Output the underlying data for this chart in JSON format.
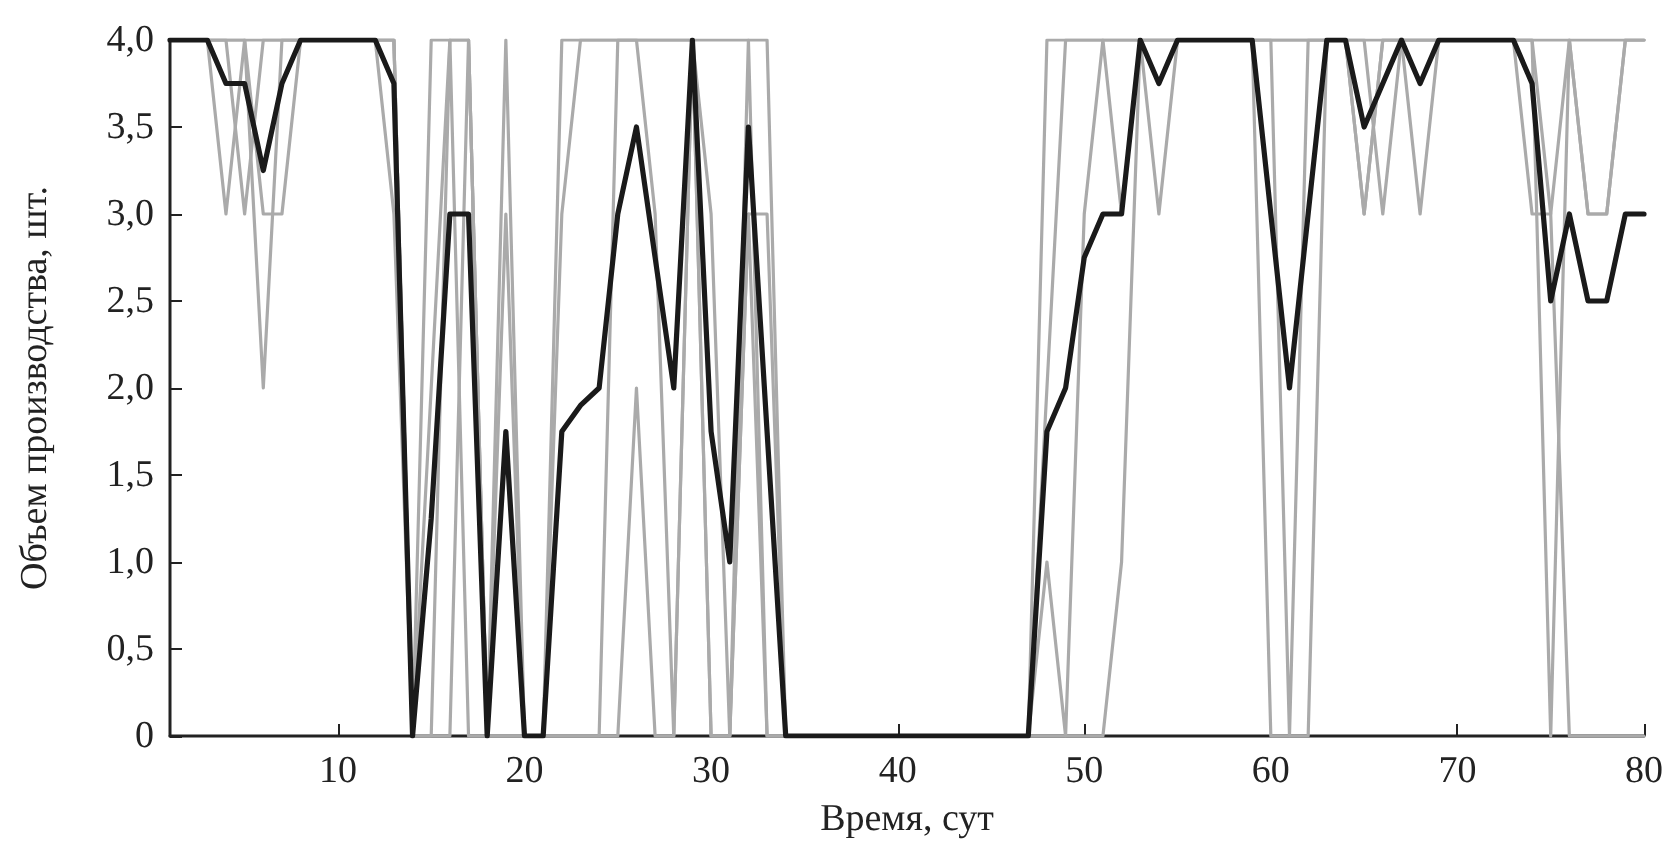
{
  "chart_data": {
    "type": "line",
    "xlabel": "Время, сут",
    "ylabel": "Объем производства, шт.",
    "x": [
      1,
      2,
      3,
      4,
      5,
      6,
      7,
      8,
      9,
      10,
      11,
      12,
      13,
      14,
      15,
      16,
      17,
      18,
      19,
      20,
      21,
      22,
      23,
      24,
      25,
      26,
      27,
      28,
      29,
      30,
      31,
      32,
      33,
      34,
      35,
      36,
      37,
      38,
      39,
      40,
      41,
      42,
      43,
      44,
      45,
      46,
      47,
      48,
      49,
      50,
      51,
      52,
      53,
      54,
      55,
      56,
      57,
      58,
      59,
      60,
      61,
      62,
      63,
      64,
      65,
      66,
      67,
      68,
      69,
      70,
      71,
      72,
      73,
      74,
      75,
      76,
      77,
      78,
      79,
      80
    ],
    "series": [
      {
        "color": "#aaaaaa",
        "values": [
          4,
          4,
          4,
          3,
          4,
          4,
          4,
          4,
          4,
          4,
          4,
          4,
          4,
          0,
          4,
          4,
          4,
          0,
          4,
          0,
          0,
          4,
          4,
          4,
          4,
          4,
          4,
          4,
          4,
          4,
          4,
          4,
          4,
          0,
          0,
          0,
          0,
          0,
          0,
          0,
          0,
          0,
          0,
          0,
          0,
          0,
          0,
          4,
          4,
          4,
          4,
          4,
          4,
          4,
          4,
          4,
          4,
          4,
          4,
          4,
          4,
          4,
          4,
          4,
          4,
          4,
          4,
          4,
          4,
          4,
          4,
          4,
          4,
          4,
          4,
          4,
          4,
          4,
          4,
          4
        ]
      },
      {
        "color": "#aaaaaa",
        "values": [
          4,
          4,
          4,
          4,
          3,
          4,
          4,
          4,
          4,
          4,
          4,
          4,
          4,
          0,
          2,
          4,
          4,
          0,
          3,
          0,
          0,
          3,
          4,
          4,
          4,
          4,
          4,
          4,
          4,
          3,
          0,
          4,
          0,
          0,
          0,
          0,
          0,
          0,
          0,
          0,
          0,
          0,
          0,
          0,
          0,
          0,
          0,
          2,
          4,
          4,
          4,
          4,
          4,
          4,
          4,
          4,
          4,
          4,
          4,
          4,
          4,
          4,
          4,
          4,
          4,
          3,
          4,
          4,
          4,
          4,
          4,
          4,
          4,
          4,
          0,
          4,
          3,
          3,
          4,
          4
        ]
      },
      {
        "color": "#aaaaaa",
        "values": [
          4,
          4,
          4,
          4,
          4,
          2,
          4,
          4,
          4,
          4,
          4,
          4,
          3,
          0,
          0,
          4,
          0,
          0,
          0,
          0,
          0,
          0,
          0,
          0,
          4,
          4,
          3,
          0,
          4,
          0,
          0,
          3,
          3,
          0,
          0,
          0,
          0,
          0,
          0,
          0,
          0,
          0,
          0,
          0,
          0,
          0,
          0,
          1,
          0,
          3,
          4,
          3,
          4,
          3,
          4,
          4,
          4,
          4,
          4,
          4,
          0,
          4,
          4,
          4,
          3,
          4,
          4,
          3,
          4,
          4,
          4,
          4,
          4,
          3,
          3,
          4,
          3,
          3,
          4,
          4
        ]
      },
      {
        "color": "#aaaaaa",
        "values": [
          4,
          4,
          4,
          4,
          4,
          3,
          3,
          4,
          4,
          4,
          4,
          4,
          4,
          0,
          0,
          0,
          4,
          0,
          0,
          0,
          0,
          0,
          0,
          0,
          0,
          2,
          0,
          0,
          4,
          0,
          0,
          3,
          0,
          0,
          0,
          0,
          0,
          0,
          0,
          0,
          0,
          0,
          0,
          0,
          0,
          0,
          0,
          0,
          0,
          0,
          0,
          1,
          4,
          4,
          4,
          4,
          4,
          4,
          4,
          0,
          0,
          0,
          4,
          4,
          3,
          4,
          4,
          4,
          4,
          4,
          4,
          4,
          4,
          4,
          3,
          0,
          0,
          0,
          0,
          0
        ]
      },
      {
        "color": "#1a1a1a",
        "values": [
          4,
          4,
          4,
          3.75,
          3.75,
          3.25,
          3.75,
          4,
          4,
          4,
          4,
          4,
          3.75,
          0,
          1.25,
          3,
          3,
          0,
          1.75,
          0,
          0,
          1.75,
          1.9,
          2,
          3,
          3.5,
          2.75,
          2,
          4,
          1.75,
          1,
          3.5,
          1.75,
          0,
          0,
          0,
          0,
          0,
          0,
          0,
          0,
          0,
          0,
          0,
          0,
          0,
          0,
          1.75,
          2,
          2.75,
          3,
          3,
          4,
          3.75,
          4,
          4,
          4,
          4,
          4,
          3,
          2,
          3,
          4,
          4,
          3.5,
          3.75,
          4,
          3.75,
          4,
          4,
          4,
          4,
          4,
          3.75,
          2.5,
          3,
          2.5,
          2.5,
          3,
          3
        ]
      }
    ],
    "xlim": [
      1,
      80
    ],
    "xticks": [
      10,
      20,
      30,
      40,
      50,
      60,
      70,
      80
    ],
    "ylim": [
      0,
      4
    ],
    "yticks": [
      0,
      {
        "value": 0.5,
        "label": "0,5"
      },
      {
        "value": 1,
        "label": "1,0"
      },
      {
        "value": 1.5,
        "label": "1,5"
      },
      {
        "value": 2,
        "label": "2,0"
      },
      {
        "value": 2.5,
        "label": "2,5"
      },
      {
        "value": 3,
        "label": "3,0"
      },
      {
        "value": 3.5,
        "label": "3,5"
      },
      {
        "value": 4,
        "label": "4,0"
      }
    ],
    "grid": false,
    "marker": "none",
    "line_style": "solid"
  }
}
